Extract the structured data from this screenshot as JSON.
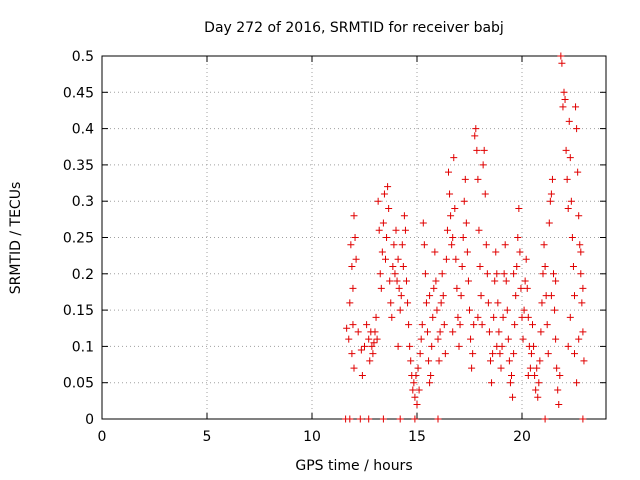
{
  "chart_data": {
    "type": "scatter",
    "title": "Day 272 of 2016, SRMTID for receiver babj",
    "xlabel": "GPS time / hours",
    "ylabel": "SRMTID / TECUs",
    "xlim": [
      0,
      24
    ],
    "ylim": [
      0,
      0.5
    ],
    "xticks": [
      0,
      5,
      10,
      15,
      20
    ],
    "xtick_labels": [
      "0",
      "5",
      "10",
      "15",
      "20"
    ],
    "yticks": [
      0,
      0.05,
      0.1,
      0.15,
      0.2,
      0.25,
      0.3,
      0.35,
      0.4,
      0.45,
      0.5
    ],
    "ytick_labels": [
      "0",
      "0.05",
      "0.1",
      "0.15",
      "0.2",
      "0.25",
      "0.3",
      "0.35",
      "0.4",
      "0.45",
      "0.5"
    ],
    "grid": true,
    "marker": "+",
    "color": "#e00000",
    "series": [
      {
        "name": "SRMTID",
        "points": [
          [
            11.6,
            0.0
          ],
          [
            11.8,
            0.0
          ],
          [
            12.3,
            0.0
          ],
          [
            12.7,
            0.0
          ],
          [
            13.4,
            0.0
          ],
          [
            14.9,
            0.0
          ],
          [
            16.0,
            0.0
          ],
          [
            21.1,
            0.0
          ],
          [
            22.9,
            0.0
          ],
          [
            11.65,
            0.125
          ],
          [
            11.75,
            0.11
          ],
          [
            11.85,
            0.24
          ],
          [
            11.9,
            0.21
          ],
          [
            11.95,
            0.18
          ],
          [
            12.0,
            0.28
          ],
          [
            12.05,
            0.25
          ],
          [
            11.8,
            0.16
          ],
          [
            11.95,
            0.13
          ],
          [
            12.1,
            0.22
          ],
          [
            11.9,
            0.09
          ],
          [
            12.0,
            0.07
          ],
          [
            12.2,
            0.12
          ],
          [
            12.35,
            0.095
          ],
          [
            12.4,
            0.06
          ],
          [
            12.5,
            0.1
          ],
          [
            12.6,
            0.13
          ],
          [
            12.7,
            0.11
          ],
          [
            12.75,
            0.08
          ],
          [
            12.8,
            0.12
          ],
          [
            12.85,
            0.1
          ],
          [
            12.9,
            0.09
          ],
          [
            12.95,
            0.105
          ],
          [
            13.0,
            0.12
          ],
          [
            13.05,
            0.14
          ],
          [
            13.1,
            0.11
          ],
          [
            13.15,
            0.3
          ],
          [
            13.2,
            0.26
          ],
          [
            13.25,
            0.2
          ],
          [
            13.3,
            0.18
          ],
          [
            13.35,
            0.23
          ],
          [
            13.4,
            0.27
          ],
          [
            13.45,
            0.31
          ],
          [
            13.5,
            0.22
          ],
          [
            13.55,
            0.25
          ],
          [
            13.6,
            0.32
          ],
          [
            13.65,
            0.29
          ],
          [
            13.7,
            0.19
          ],
          [
            13.75,
            0.16
          ],
          [
            13.8,
            0.14
          ],
          [
            13.85,
            0.21
          ],
          [
            13.9,
            0.24
          ],
          [
            13.95,
            0.2
          ],
          [
            14.0,
            0.26
          ],
          [
            14.05,
            0.19
          ],
          [
            14.1,
            0.22
          ],
          [
            14.15,
            0.18
          ],
          [
            14.2,
            0.15
          ],
          [
            14.25,
            0.17
          ],
          [
            14.3,
            0.24
          ],
          [
            14.35,
            0.21
          ],
          [
            14.4,
            0.28
          ],
          [
            14.45,
            0.26
          ],
          [
            14.5,
            0.19
          ],
          [
            14.55,
            0.16
          ],
          [
            14.6,
            0.13
          ],
          [
            14.65,
            0.1
          ],
          [
            14.7,
            0.08
          ],
          [
            14.75,
            0.06
          ],
          [
            14.8,
            0.04
          ],
          [
            14.85,
            0.05
          ],
          [
            14.9,
            0.03
          ],
          [
            14.95,
            0.06
          ],
          [
            15.0,
            0.02
          ],
          [
            15.05,
            0.07
          ],
          [
            15.1,
            0.04
          ],
          [
            15.15,
            0.09
          ],
          [
            15.2,
            0.11
          ],
          [
            15.25,
            0.13
          ],
          [
            15.3,
            0.27
          ],
          [
            15.35,
            0.24
          ],
          [
            15.4,
            0.2
          ],
          [
            15.45,
            0.16
          ],
          [
            15.5,
            0.12
          ],
          [
            15.55,
            0.08
          ],
          [
            15.6,
            0.05
          ],
          [
            15.65,
            0.06
          ],
          [
            15.7,
            0.1
          ],
          [
            15.75,
            0.14
          ],
          [
            15.8,
            0.18
          ],
          [
            15.85,
            0.23
          ],
          [
            15.9,
            0.19
          ],
          [
            15.95,
            0.15
          ],
          [
            16.0,
            0.11
          ],
          [
            16.05,
            0.08
          ],
          [
            16.1,
            0.12
          ],
          [
            16.15,
            0.16
          ],
          [
            16.2,
            0.2
          ],
          [
            16.25,
            0.17
          ],
          [
            16.3,
            0.13
          ],
          [
            16.35,
            0.09
          ],
          [
            16.4,
            0.22
          ],
          [
            16.45,
            0.26
          ],
          [
            16.5,
            0.34
          ],
          [
            16.55,
            0.31
          ],
          [
            16.6,
            0.28
          ],
          [
            16.65,
            0.24
          ],
          [
            16.7,
            0.25
          ],
          [
            16.75,
            0.36
          ],
          [
            16.8,
            0.29
          ],
          [
            16.85,
            0.22
          ],
          [
            16.9,
            0.18
          ],
          [
            16.95,
            0.14
          ],
          [
            17.0,
            0.1
          ],
          [
            17.05,
            0.13
          ],
          [
            17.1,
            0.17
          ],
          [
            17.15,
            0.21
          ],
          [
            17.2,
            0.25
          ],
          [
            17.25,
            0.3
          ],
          [
            17.3,
            0.33
          ],
          [
            17.35,
            0.27
          ],
          [
            17.4,
            0.23
          ],
          [
            17.45,
            0.19
          ],
          [
            17.5,
            0.15
          ],
          [
            17.55,
            0.11
          ],
          [
            17.6,
            0.07
          ],
          [
            17.65,
            0.09
          ],
          [
            17.7,
            0.13
          ],
          [
            17.75,
            0.39
          ],
          [
            17.8,
            0.4
          ],
          [
            17.85,
            0.37
          ],
          [
            17.9,
            0.33
          ],
          [
            17.95,
            0.26
          ],
          [
            18.0,
            0.21
          ],
          [
            18.05,
            0.17
          ],
          [
            18.1,
            0.13
          ],
          [
            18.15,
            0.35
          ],
          [
            18.2,
            0.37
          ],
          [
            18.25,
            0.31
          ],
          [
            18.3,
            0.24
          ],
          [
            18.35,
            0.2
          ],
          [
            18.4,
            0.16
          ],
          [
            18.45,
            0.12
          ],
          [
            18.5,
            0.08
          ],
          [
            18.55,
            0.05
          ],
          [
            18.6,
            0.09
          ],
          [
            18.65,
            0.14
          ],
          [
            18.7,
            0.19
          ],
          [
            18.75,
            0.23
          ],
          [
            18.8,
            0.2
          ],
          [
            18.85,
            0.16
          ],
          [
            18.9,
            0.12
          ],
          [
            18.95,
            0.09
          ],
          [
            19.0,
            0.07
          ],
          [
            19.05,
            0.1
          ],
          [
            19.1,
            0.14
          ],
          [
            19.15,
            0.2
          ],
          [
            19.2,
            0.24
          ],
          [
            19.25,
            0.19
          ],
          [
            19.3,
            0.15
          ],
          [
            19.35,
            0.11
          ],
          [
            19.4,
            0.08
          ],
          [
            19.45,
            0.05
          ],
          [
            19.5,
            0.06
          ],
          [
            19.55,
            0.03
          ],
          [
            19.6,
            0.09
          ],
          [
            19.65,
            0.13
          ],
          [
            19.7,
            0.17
          ],
          [
            19.75,
            0.21
          ],
          [
            19.8,
            0.25
          ],
          [
            19.85,
            0.29
          ],
          [
            19.9,
            0.23
          ],
          [
            19.95,
            0.18
          ],
          [
            20.0,
            0.14
          ],
          [
            20.05,
            0.11
          ],
          [
            20.1,
            0.15
          ],
          [
            20.15,
            0.19
          ],
          [
            20.2,
            0.22
          ],
          [
            20.25,
            0.18
          ],
          [
            20.3,
            0.14
          ],
          [
            20.35,
            0.1
          ],
          [
            20.4,
            0.07
          ],
          [
            20.45,
            0.09
          ],
          [
            20.5,
            0.13
          ],
          [
            20.55,
            0.1
          ],
          [
            20.6,
            0.06
          ],
          [
            20.65,
            0.04
          ],
          [
            20.7,
            0.07
          ],
          [
            20.75,
            0.03
          ],
          [
            20.8,
            0.05
          ],
          [
            20.85,
            0.08
          ],
          [
            20.9,
            0.12
          ],
          [
            20.95,
            0.16
          ],
          [
            21.0,
            0.2
          ],
          [
            21.05,
            0.24
          ],
          [
            21.1,
            0.21
          ],
          [
            21.15,
            0.17
          ],
          [
            21.2,
            0.13
          ],
          [
            21.25,
            0.09
          ],
          [
            21.3,
            0.27
          ],
          [
            21.35,
            0.3
          ],
          [
            21.4,
            0.31
          ],
          [
            21.45,
            0.33
          ],
          [
            21.5,
            0.2
          ],
          [
            21.55,
            0.15
          ],
          [
            21.6,
            0.11
          ],
          [
            21.65,
            0.07
          ],
          [
            21.7,
            0.04
          ],
          [
            21.75,
            0.02
          ],
          [
            21.8,
            0.06
          ],
          [
            21.85,
            0.5
          ],
          [
            21.9,
            0.49
          ],
          [
            21.95,
            0.43
          ],
          [
            22.0,
            0.45
          ],
          [
            22.05,
            0.44
          ],
          [
            22.1,
            0.37
          ],
          [
            22.15,
            0.33
          ],
          [
            22.2,
            0.29
          ],
          [
            22.25,
            0.41
          ],
          [
            22.3,
            0.36
          ],
          [
            22.35,
            0.3
          ],
          [
            22.4,
            0.25
          ],
          [
            22.45,
            0.21
          ],
          [
            22.5,
            0.17
          ],
          [
            22.55,
            0.43
          ],
          [
            22.6,
            0.4
          ],
          [
            22.65,
            0.34
          ],
          [
            22.7,
            0.28
          ],
          [
            22.75,
            0.24
          ],
          [
            22.8,
            0.2
          ],
          [
            22.85,
            0.16
          ],
          [
            22.9,
            0.12
          ],
          [
            22.95,
            0.08
          ],
          [
            22.6,
            0.05
          ],
          [
            22.7,
            0.11
          ],
          [
            22.8,
            0.23
          ],
          [
            22.9,
            0.18
          ],
          [
            22.5,
            0.09
          ],
          [
            22.3,
            0.14
          ],
          [
            22.2,
            0.1
          ],
          [
            14.2,
            0.0
          ],
          [
            14.1,
            0.1
          ],
          [
            15.6,
            0.17
          ],
          [
            16.7,
            0.12
          ],
          [
            17.9,
            0.14
          ],
          [
            18.8,
            0.1
          ],
          [
            19.6,
            0.2
          ],
          [
            20.3,
            0.06
          ],
          [
            21.4,
            0.17
          ],
          [
            21.6,
            0.19
          ]
        ]
      }
    ]
  }
}
